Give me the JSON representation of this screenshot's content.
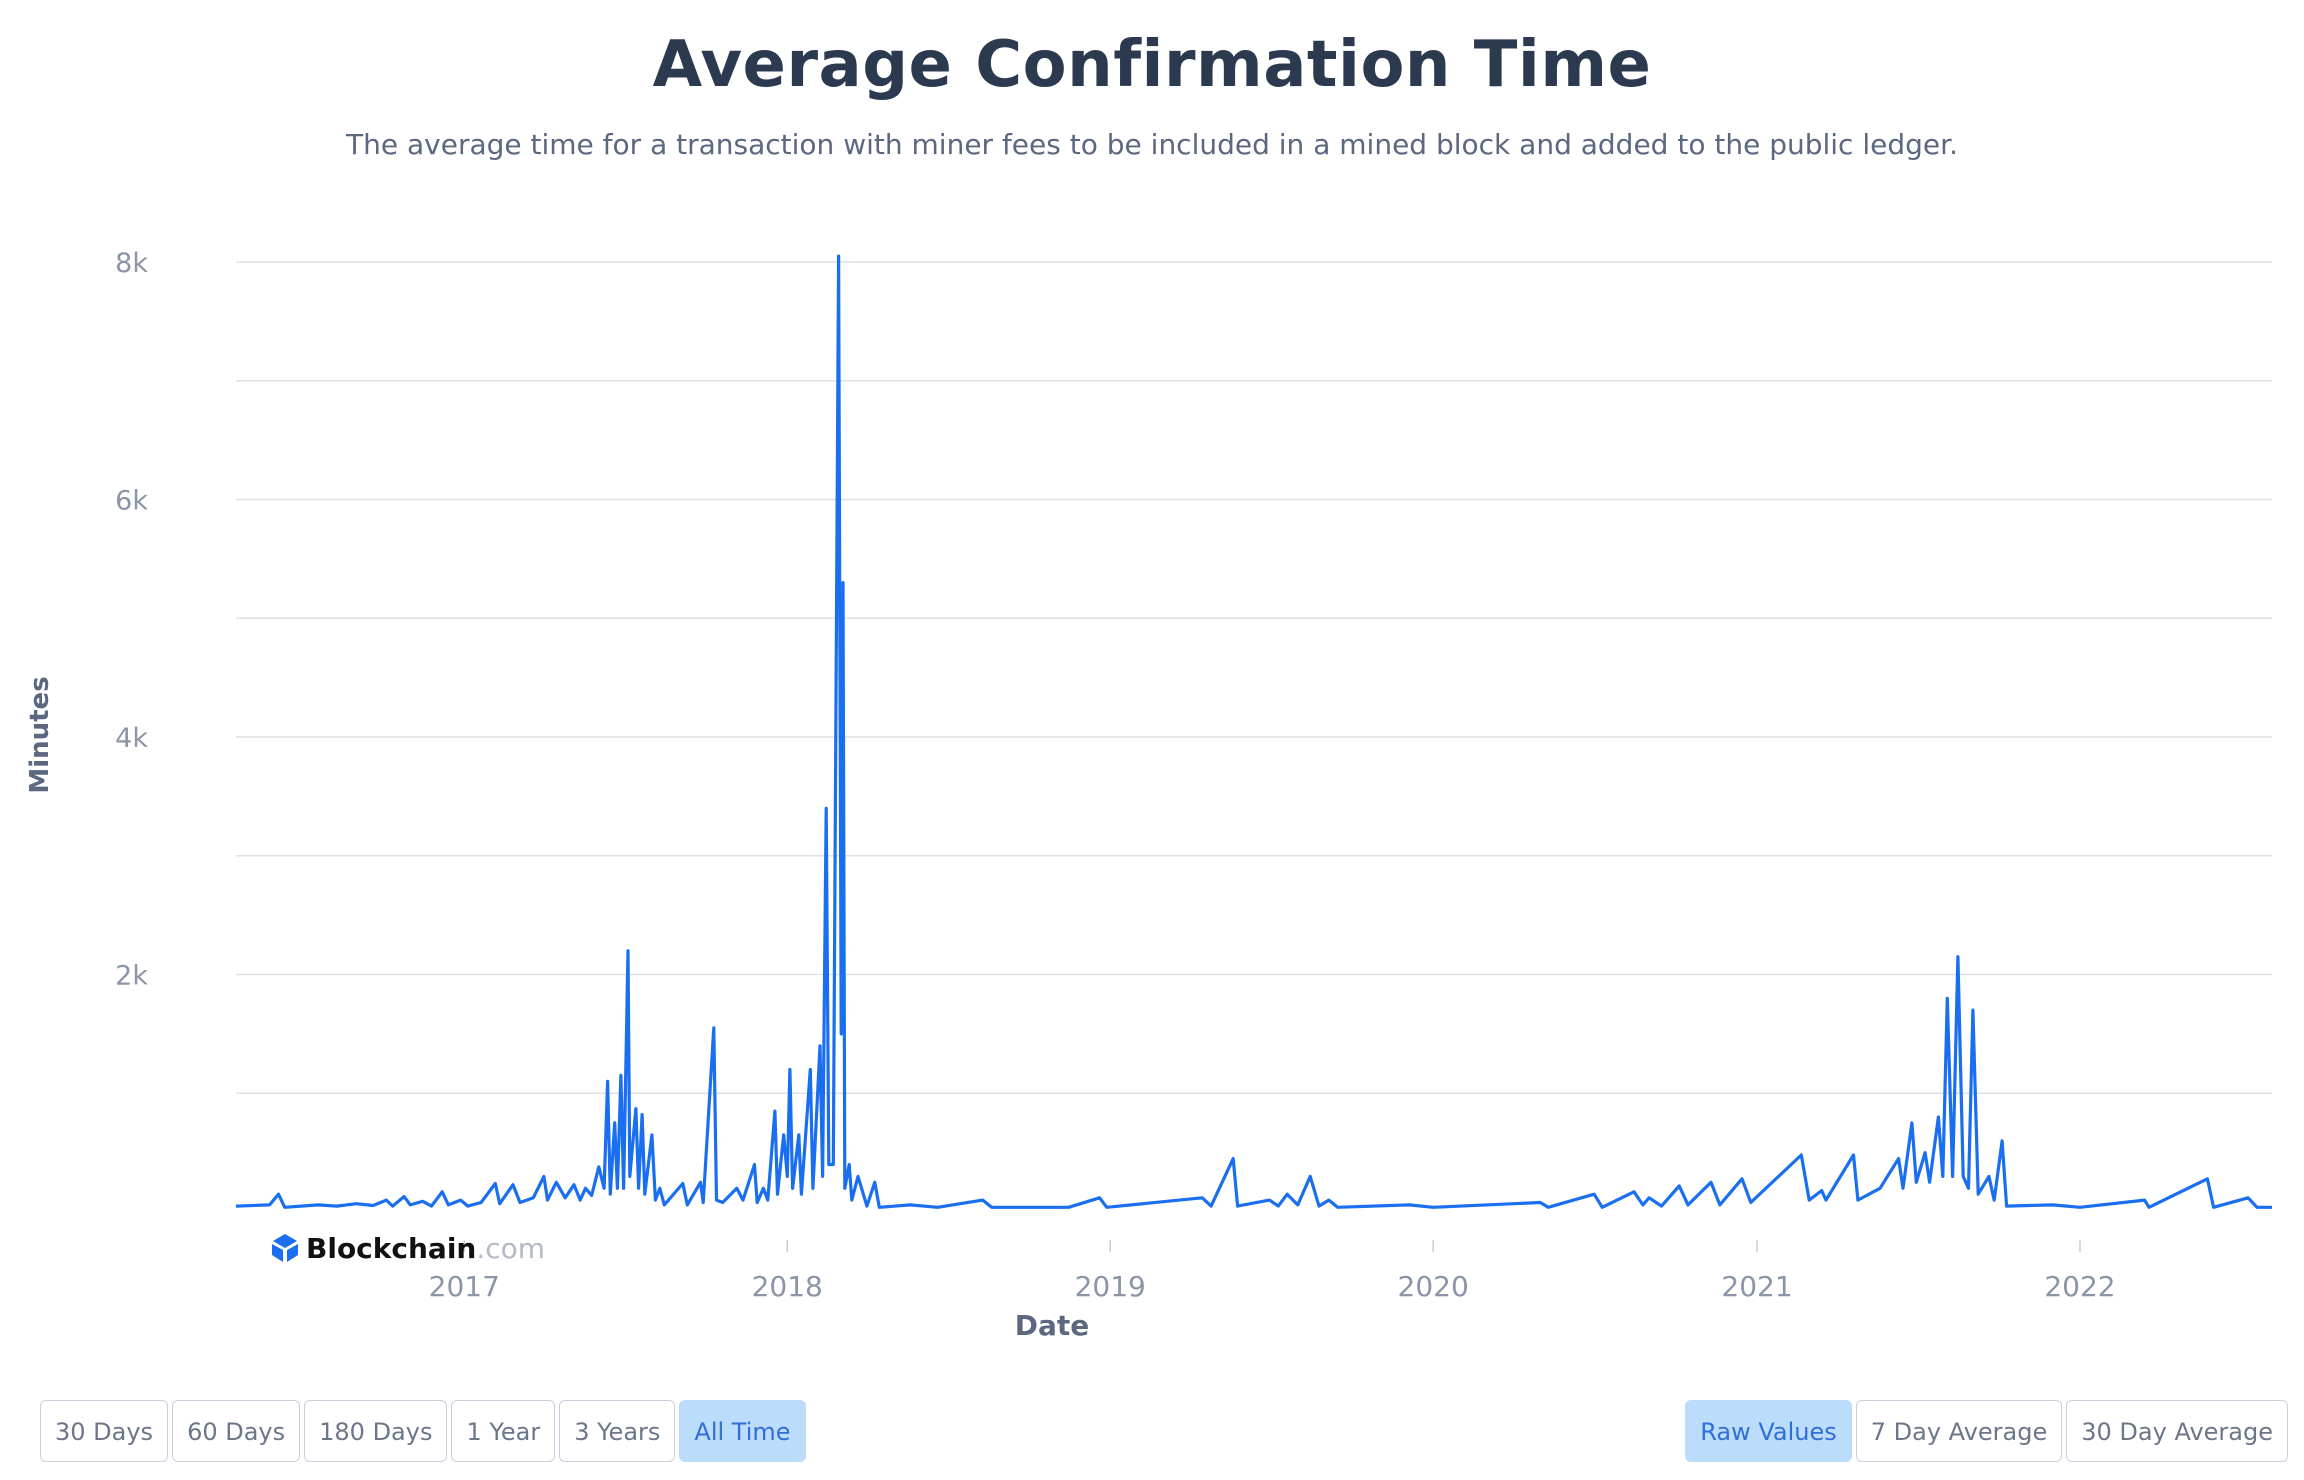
{
  "header": {
    "title": "Average Confirmation Time",
    "subtitle": "The average time for a transaction with miner fees to be included in a mined block and added to the public ledger."
  },
  "watermark": {
    "brand": "Blockchain",
    "suffix": ".com"
  },
  "range_buttons": [
    {
      "label": "30 Days",
      "active": false
    },
    {
      "label": "60 Days",
      "active": false
    },
    {
      "label": "180 Days",
      "active": false
    },
    {
      "label": "1 Year",
      "active": false
    },
    {
      "label": "3 Years",
      "active": false
    },
    {
      "label": "All Time",
      "active": true
    }
  ],
  "mode_buttons": [
    {
      "label": "Raw Values",
      "active": true
    },
    {
      "label": "7 Day Average",
      "active": false
    },
    {
      "label": "30 Day Average",
      "active": false
    }
  ],
  "colors": {
    "line": "#1a6ff0",
    "grid": "#dde1e8",
    "axis_text": "#8b95a8",
    "title": "#2c3a50"
  },
  "chart_data": {
    "type": "line",
    "xlabel": "Date",
    "ylabel": "Minutes",
    "xlim": [
      "2016-04-18",
      "2022-08-06"
    ],
    "ylim": [
      0,
      8000
    ],
    "yticks": [
      2000,
      4000,
      6000,
      8000
    ],
    "ytick_labels": [
      "2k",
      "4k",
      "6k",
      "8k"
    ],
    "xticks": [
      "2017-01-01",
      "2018-01-01",
      "2019-01-01",
      "2020-01-01",
      "2021-01-01",
      "2022-01-01"
    ],
    "xtick_labels": [
      "2017",
      "2018",
      "2019",
      "2020",
      "2021",
      "2022"
    ],
    "grid": true,
    "series": [
      {
        "points": [
          [
            "2016-04-18",
            50
          ],
          [
            "2016-05-26",
            60
          ],
          [
            "2016-06-05",
            150
          ],
          [
            "2016-06-12",
            40
          ],
          [
            "2016-07-20",
            60
          ],
          [
            "2016-08-10",
            50
          ],
          [
            "2016-09-01",
            70
          ],
          [
            "2016-09-20",
            55
          ],
          [
            "2016-10-05",
            100
          ],
          [
            "2016-10-12",
            50
          ],
          [
            "2016-10-25",
            130
          ],
          [
            "2016-11-01",
            60
          ],
          [
            "2016-11-15",
            90
          ],
          [
            "2016-11-25",
            50
          ],
          [
            "2016-12-07",
            170
          ],
          [
            "2016-12-14",
            60
          ],
          [
            "2016-12-28",
            100
          ],
          [
            "2017-01-05",
            50
          ],
          [
            "2017-01-20",
            80
          ],
          [
            "2017-02-05",
            240
          ],
          [
            "2017-02-10",
            70
          ],
          [
            "2017-02-25",
            230
          ],
          [
            "2017-03-05",
            80
          ],
          [
            "2017-03-20",
            120
          ],
          [
            "2017-04-01",
            300
          ],
          [
            "2017-04-05",
            100
          ],
          [
            "2017-04-15",
            250
          ],
          [
            "2017-04-25",
            120
          ],
          [
            "2017-05-05",
            230
          ],
          [
            "2017-05-12",
            100
          ],
          [
            "2017-05-18",
            200
          ],
          [
            "2017-05-25",
            140
          ],
          [
            "2017-06-02",
            380
          ],
          [
            "2017-06-08",
            200
          ],
          [
            "2017-06-12",
            1100
          ],
          [
            "2017-06-15",
            150
          ],
          [
            "2017-06-20",
            750
          ],
          [
            "2017-06-23",
            200
          ],
          [
            "2017-06-27",
            1150
          ],
          [
            "2017-06-30",
            200
          ],
          [
            "2017-07-05",
            2200
          ],
          [
            "2017-07-07",
            300
          ],
          [
            "2017-07-14",
            870
          ],
          [
            "2017-07-17",
            200
          ],
          [
            "2017-07-21",
            820
          ],
          [
            "2017-07-24",
            150
          ],
          [
            "2017-08-01",
            650
          ],
          [
            "2017-08-05",
            100
          ],
          [
            "2017-08-10",
            200
          ],
          [
            "2017-08-15",
            60
          ],
          [
            "2017-09-05",
            240
          ],
          [
            "2017-09-10",
            60
          ],
          [
            "2017-09-25",
            250
          ],
          [
            "2017-09-28",
            80
          ],
          [
            "2017-10-10",
            1550
          ],
          [
            "2017-10-13",
            100
          ],
          [
            "2017-10-20",
            80
          ],
          [
            "2017-11-05",
            200
          ],
          [
            "2017-11-12",
            100
          ],
          [
            "2017-11-25",
            400
          ],
          [
            "2017-11-28",
            80
          ],
          [
            "2017-12-05",
            200
          ],
          [
            "2017-12-10",
            100
          ],
          [
            "2017-12-18",
            850
          ],
          [
            "2017-12-21",
            150
          ],
          [
            "2017-12-28",
            650
          ],
          [
            "2018-01-01",
            300
          ],
          [
            "2018-01-04",
            1200
          ],
          [
            "2018-01-07",
            200
          ],
          [
            "2018-01-14",
            650
          ],
          [
            "2018-01-17",
            150
          ],
          [
            "2018-01-27",
            1200
          ],
          [
            "2018-01-30",
            200
          ],
          [
            "2018-02-07",
            1400
          ],
          [
            "2018-02-10",
            300
          ],
          [
            "2018-02-14",
            3400
          ],
          [
            "2018-02-17",
            400
          ],
          [
            "2018-02-22",
            400
          ],
          [
            "2018-02-28",
            8050
          ],
          [
            "2018-03-03",
            1500
          ],
          [
            "2018-03-05",
            5300
          ],
          [
            "2018-03-07",
            200
          ],
          [
            "2018-03-12",
            400
          ],
          [
            "2018-03-15",
            100
          ],
          [
            "2018-03-22",
            300
          ],
          [
            "2018-04-01",
            50
          ],
          [
            "2018-04-10",
            250
          ],
          [
            "2018-04-15",
            40
          ],
          [
            "2018-05-20",
            60
          ],
          [
            "2018-06-20",
            40
          ],
          [
            "2018-08-10",
            100
          ],
          [
            "2018-08-20",
            40
          ],
          [
            "2018-11-15",
            40
          ],
          [
            "2018-12-20",
            120
          ],
          [
            "2018-12-28",
            40
          ],
          [
            "2019-04-15",
            120
          ],
          [
            "2019-04-25",
            50
          ],
          [
            "2019-05-20",
            450
          ],
          [
            "2019-05-25",
            50
          ],
          [
            "2019-06-30",
            100
          ],
          [
            "2019-07-10",
            50
          ],
          [
            "2019-07-20",
            150
          ],
          [
            "2019-08-01",
            60
          ],
          [
            "2019-08-15",
            300
          ],
          [
            "2019-08-25",
            50
          ],
          [
            "2019-09-05",
            100
          ],
          [
            "2019-09-15",
            40
          ],
          [
            "2019-12-05",
            60
          ],
          [
            "2020-01-01",
            40
          ],
          [
            "2020-05-01",
            80
          ],
          [
            "2020-05-10",
            40
          ],
          [
            "2020-07-01",
            150
          ],
          [
            "2020-07-10",
            40
          ],
          [
            "2020-08-15",
            170
          ],
          [
            "2020-08-25",
            60
          ],
          [
            "2020-09-01",
            120
          ],
          [
            "2020-09-15",
            50
          ],
          [
            "2020-10-05",
            220
          ],
          [
            "2020-10-15",
            60
          ],
          [
            "2020-11-10",
            250
          ],
          [
            "2020-11-20",
            60
          ],
          [
            "2020-12-15",
            280
          ],
          [
            "2020-12-25",
            80
          ],
          [
            "2021-02-20",
            480
          ],
          [
            "2021-03-01",
            100
          ],
          [
            "2021-03-15",
            180
          ],
          [
            "2021-03-20",
            100
          ],
          [
            "2021-04-20",
            480
          ],
          [
            "2021-04-25",
            100
          ],
          [
            "2021-05-20",
            200
          ],
          [
            "2021-06-10",
            450
          ],
          [
            "2021-06-15",
            200
          ],
          [
            "2021-06-25",
            750
          ],
          [
            "2021-06-30",
            250
          ],
          [
            "2021-07-10",
            500
          ],
          [
            "2021-07-15",
            250
          ],
          [
            "2021-07-25",
            800
          ],
          [
            "2021-07-30",
            300
          ],
          [
            "2021-08-04",
            1800
          ],
          [
            "2021-08-10",
            300
          ],
          [
            "2021-08-16",
            2150
          ],
          [
            "2021-08-22",
            300
          ],
          [
            "2021-08-28",
            200
          ],
          [
            "2021-09-02",
            1700
          ],
          [
            "2021-09-08",
            150
          ],
          [
            "2021-09-20",
            300
          ],
          [
            "2021-09-26",
            100
          ],
          [
            "2021-10-05",
            600
          ],
          [
            "2021-10-10",
            50
          ],
          [
            "2021-12-01",
            60
          ],
          [
            "2022-01-01",
            40
          ],
          [
            "2022-03-15",
            100
          ],
          [
            "2022-03-20",
            40
          ],
          [
            "2022-05-25",
            280
          ],
          [
            "2022-06-01",
            40
          ],
          [
            "2022-07-10",
            120
          ],
          [
            "2022-07-20",
            40
          ],
          [
            "2022-08-06",
            40
          ]
        ]
      }
    ]
  }
}
